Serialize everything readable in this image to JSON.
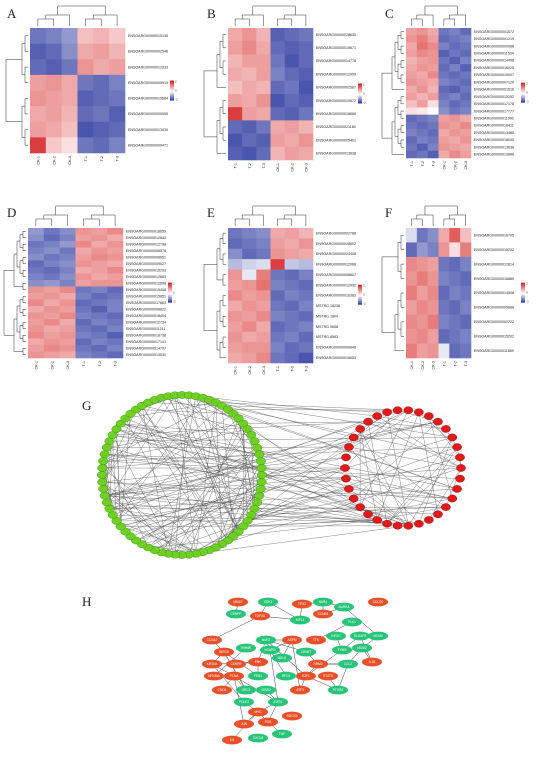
{
  "panels": {
    "A": {
      "label": "A",
      "columns": [
        "CK-1",
        "CK-2",
        "CK-3",
        "T-1",
        "T-2",
        "T-3"
      ],
      "rows": [
        "ENSOARG00000010136",
        "ENSOARG00000002548",
        "ENSOARG00000012933",
        "ENSOARG00000005915",
        "ENSOARG00000019684",
        "ENSOARG00000005055",
        "ENSOARG00000013030",
        "ENSOARG00000009471"
      ],
      "values": [
        [
          -1.2,
          -1.1,
          -0.9,
          0.6,
          0.7,
          0.5
        ],
        [
          -1.4,
          -1.3,
          -1.0,
          0.8,
          0.9,
          0.7
        ],
        [
          -1.3,
          -1.4,
          -1.2,
          1.0,
          0.8,
          0.9
        ],
        [
          0.9,
          1.0,
          0.8,
          -1.2,
          -1.3,
          -1.1
        ],
        [
          1.0,
          0.9,
          0.8,
          -1.4,
          -1.3,
          -1.2
        ],
        [
          0.8,
          0.9,
          0.7,
          -1.3,
          -1.2,
          -1.4
        ],
        [
          0.9,
          0.8,
          0.6,
          -1.5,
          -1.4,
          -1.3
        ],
        [
          1.8,
          0.5,
          0.3,
          -1.2,
          -1.3,
          -1.1
        ]
      ]
    },
    "B": {
      "label": "B",
      "columns": [
        "T-1",
        "T-2",
        "T-3",
        "CK-1",
        "CK-2",
        "CK-3"
      ],
      "rows": [
        "ENSOARG00000028630",
        "ENSOARG00000019671",
        "ENSOARG00000014778",
        "ENSOARG00000012999",
        "ENSOARG00000002587",
        "ENSOARG00000010672",
        "ENSOARG00000018689",
        "ENSOARG00000021180",
        "ENSOARG00000005401",
        "ENSOARG00000013638"
      ],
      "values": [
        [
          0.8,
          1.0,
          0.7,
          -1.4,
          -1.3,
          -1.2
        ],
        [
          0.9,
          1.1,
          0.8,
          -1.3,
          -1.4,
          -1.3
        ],
        [
          0.7,
          0.9,
          0.9,
          -1.2,
          -1.5,
          -1.3
        ],
        [
          0.8,
          0.7,
          0.9,
          -1.1,
          -1.3,
          -1.4
        ],
        [
          0.6,
          0.8,
          0.7,
          -1.3,
          -1.2,
          -1.5
        ],
        [
          0.9,
          0.8,
          1.0,
          -1.5,
          -1.3,
          -1.4
        ],
        [
          1.8,
          0.9,
          0.8,
          -1.3,
          -1.4,
          -1.2
        ],
        [
          -1.3,
          -1.4,
          -1.2,
          0.8,
          0.9,
          0.7
        ],
        [
          -1.5,
          -1.3,
          -1.4,
          0.9,
          0.8,
          1.0
        ],
        [
          -1.4,
          -1.5,
          -1.3,
          0.7,
          0.9,
          0.8
        ]
      ]
    },
    "C": {
      "label": "C",
      "columns": [
        "T-1",
        "T-2",
        "T-3",
        "CK-1",
        "CK-2",
        "CK-3"
      ],
      "rows": [
        "ENSOARG00000001572",
        "ENSOARG00000001219",
        "ENSOARG00000000988",
        "ENSOARG00000011534",
        "ENSOARG00000014498",
        "ENSOARG00000016025",
        "ENSOARG00000019007",
        "ENSOARG00000007120",
        "ENSOARG00000001616",
        "ENSOARG00000015252",
        "ENSOARG00000017178",
        "ENSOARG00000017777",
        "ENSOARG00000011990",
        "ENSOARG00000016411",
        "ENSOARG00000013485",
        "ENSOARG00000018040",
        "ENSOARG00000013636",
        "ENSOARG00000013888"
      ],
      "values": [
        [
          0.9,
          1.0,
          0.8,
          -1.2,
          -1.1,
          -1.3
        ],
        [
          1.0,
          1.2,
          0.9,
          -1.3,
          -1.2,
          -1.1
        ],
        [
          0.8,
          1.3,
          1.1,
          -1.1,
          -1.3,
          -1.2
        ],
        [
          0.9,
          1.1,
          1.0,
          -1.4,
          -1.2,
          -1.3
        ],
        [
          0.7,
          0.9,
          1.0,
          -1.2,
          -1.4,
          -1.1
        ],
        [
          0.8,
          1.0,
          0.9,
          -1.3,
          -1.1,
          -1.4
        ],
        [
          0.9,
          0.8,
          1.1,
          -1.2,
          -1.3,
          -1.2
        ],
        [
          1.0,
          0.9,
          0.8,
          -1.1,
          -1.2,
          -1.3
        ],
        [
          0.8,
          1.0,
          0.7,
          -1.3,
          -1.4,
          -1.2
        ],
        [
          0.9,
          0.7,
          0.9,
          -1.2,
          -1.1,
          -1.3
        ],
        [
          0.6,
          0.9,
          0.3,
          -1.1,
          -1.3,
          -1.2
        ],
        [
          0.3,
          0.2,
          0.0,
          -1.0,
          -1.2,
          -1.1
        ],
        [
          -1.3,
          -1.2,
          -1.1,
          0.9,
          1.0,
          0.8
        ],
        [
          -1.2,
          -1.3,
          -1.2,
          1.0,
          0.9,
          1.1
        ],
        [
          -1.1,
          -1.2,
          -1.3,
          0.8,
          1.0,
          0.9
        ],
        [
          -1.3,
          -1.1,
          -1.2,
          0.9,
          0.8,
          1.0
        ],
        [
          -1.2,
          -1.4,
          -1.1,
          1.0,
          0.9,
          0.8
        ],
        [
          -1.3,
          -1.2,
          -1.4,
          0.8,
          1.1,
          0.9
        ]
      ]
    },
    "D": {
      "label": "D",
      "columns": [
        "CK-1",
        "CK-2",
        "CK-3",
        "T-1",
        "T-2",
        "T-3"
      ],
      "rows": [
        "ENSOARG00000018659",
        "ENSOARG00000012843",
        "ENSOARG00000012798",
        "ENSOARG00000006578",
        "ENSOARG00000006651",
        "ENSOARG00000009027",
        "ENSOARG00000015293",
        "ENSOARG00000012883",
        "ENSOARG00000012698",
        "ENSOARG00000015408",
        "ENSOARG00000015851",
        "ENSOARG00000017663",
        "ENSOARG00000008622",
        "ENSOARG00000018404",
        "ENSOARG00000012734",
        "ENSOARG00000011211",
        "ENSOARG00000018738",
        "ENSOARG00000017141",
        "ENSOARG00000014797",
        "ENSOARG00000013030"
      ],
      "values": [
        [
          -0.9,
          -1.2,
          -1.0,
          1.0,
          0.9,
          1.1
        ],
        [
          -1.0,
          -1.3,
          -1.1,
          0.9,
          1.0,
          0.8
        ],
        [
          -1.2,
          -1.1,
          -0.9,
          1.1,
          0.8,
          1.0
        ],
        [
          -1.1,
          -1.0,
          -1.2,
          0.8,
          1.0,
          0.9
        ],
        [
          -1.0,
          -1.2,
          -1.1,
          0.9,
          1.1,
          1.0
        ],
        [
          -1.3,
          -1.1,
          -1.0,
          1.0,
          0.9,
          0.8
        ],
        [
          -1.2,
          -1.3,
          -1.1,
          0.8,
          0.9,
          1.1
        ],
        [
          -1.1,
          -1.2,
          -1.0,
          1.0,
          0.8,
          0.9
        ],
        [
          -1.0,
          -0.9,
          -1.1,
          0.9,
          1.0,
          1.0
        ],
        [
          1.0,
          0.9,
          1.1,
          -1.2,
          -1.1,
          -1.3
        ],
        [
          0.9,
          1.0,
          0.8,
          -1.1,
          -1.3,
          -1.2
        ],
        [
          1.1,
          0.8,
          1.0,
          -1.3,
          -1.2,
          -1.1
        ],
        [
          0.8,
          1.0,
          0.9,
          -1.2,
          -1.4,
          -1.1
        ],
        [
          1.0,
          0.9,
          1.1,
          -1.1,
          -1.2,
          -1.3
        ],
        [
          0.9,
          1.1,
          0.8,
          -1.3,
          -1.1,
          -1.2
        ],
        [
          1.0,
          0.8,
          0.9,
          -1.2,
          -1.3,
          -1.1
        ],
        [
          1.1,
          0.9,
          1.0,
          -1.1,
          -1.2,
          -1.4
        ],
        [
          0.8,
          1.0,
          0.9,
          -1.3,
          -1.1,
          -1.2
        ],
        [
          0.9,
          1.1,
          1.0,
          -1.2,
          -1.3,
          -1.1
        ],
        [
          1.0,
          0.9,
          0.8,
          -1.1,
          -1.2,
          -1.3
        ]
      ]
    },
    "E": {
      "label": "E",
      "columns": [
        "CK-1",
        "CK-2",
        "CK-3",
        "T-1",
        "T-2",
        "T-3"
      ],
      "rows": [
        "ENSOARG00000002788",
        "ENSOARG00000028602",
        "ENSOARG00000023408",
        "ENSOARG00000012068",
        "ENSOARG00000006607",
        "ENSOARG00000012992",
        "ENSOARG00000016383",
        "MSTRG.18236",
        "MSTRG.1804",
        "MSTRG.9656",
        "MSTRG.8563",
        "ENSOARG00000009648",
        "ENSOARG00000018653"
      ],
      "values": [
        [
          -1.2,
          -1.1,
          -1.0,
          0.8,
          0.9,
          0.7
        ],
        [
          -1.3,
          -1.2,
          -1.1,
          0.9,
          0.8,
          1.0
        ],
        [
          -1.0,
          -1.3,
          -1.2,
          1.0,
          0.9,
          0.8
        ],
        [
          -0.6,
          -0.4,
          -0.3,
          1.8,
          -0.5,
          -0.6
        ],
        [
          1.0,
          -0.2,
          1.2,
          -1.2,
          -1.3,
          -1.1
        ],
        [
          0.9,
          1.0,
          1.3,
          -1.1,
          -1.2,
          -1.3
        ],
        [
          1.1,
          0.9,
          1.0,
          -1.3,
          -1.1,
          -1.2
        ],
        [
          0.8,
          1.0,
          0.9,
          -1.2,
          -1.3,
          -1.1
        ],
        [
          1.0,
          0.9,
          1.1,
          -1.1,
          -1.2,
          -1.3
        ],
        [
          0.9,
          1.1,
          0.8,
          -1.3,
          -1.2,
          -1.1
        ],
        [
          1.0,
          0.8,
          0.9,
          -1.2,
          -1.1,
          -1.3
        ],
        [
          0.9,
          1.0,
          1.0,
          -1.1,
          -1.3,
          -1.2
        ],
        [
          0.8,
          0.9,
          1.1,
          -1.2,
          -1.3,
          -1.5
        ]
      ]
    },
    "F": {
      "label": "F",
      "columns": [
        "CK-1",
        "CK-2",
        "CK-3",
        "T-1",
        "T-2",
        "T-3"
      ],
      "rows": [
        "ENSOARG00000016705",
        "ENSOARG00000015202",
        "ENSOARG00000012814",
        "ENSOARG00000016880",
        "ENSOARG00000014508",
        "ENSOARG00000005686",
        "ENSOARG00000000722",
        "ENSOARG00000015202",
        "ENSOARG00000011889"
      ],
      "values": [
        [
          -0.3,
          -1.2,
          -1.0,
          0.8,
          1.5,
          0.6
        ],
        [
          -1.3,
          -0.9,
          -1.1,
          1.0,
          0.3,
          1.2
        ],
        [
          1.1,
          1.0,
          0.9,
          -1.2,
          -1.3,
          -1.1
        ],
        [
          1.0,
          1.2,
          1.0,
          -1.1,
          -1.2,
          -1.3
        ],
        [
          1.2,
          0.9,
          1.1,
          -1.3,
          -1.1,
          -1.2
        ],
        [
          0.9,
          1.1,
          1.0,
          -1.2,
          -1.3,
          -1.1
        ],
        [
          1.1,
          1.0,
          1.2,
          -1.1,
          -1.2,
          -1.3
        ],
        [
          1.0,
          1.1,
          0.9,
          -1.3,
          -1.2,
          -1.1
        ],
        [
          1.2,
          0.9,
          1.0,
          -0.2,
          -1.3,
          -1.2
        ]
      ]
    }
  },
  "legend": {
    "max_label": "2",
    "mid_label": "0",
    "min_label": "-2"
  },
  "network_g": {
    "label": "G",
    "green_count": 72,
    "red_count": 34
  },
  "network_h": {
    "label": "H",
    "nodes": [
      {
        "name": "MKI67",
        "color": "red"
      },
      {
        "name": "CDK1",
        "color": "green"
      },
      {
        "name": "CENPF",
        "color": "green"
      },
      {
        "name": "TOP2A",
        "color": "red"
      },
      {
        "name": "TPX2",
        "color": "red"
      },
      {
        "name": "BUB1",
        "color": "green"
      },
      {
        "name": "CCNB1",
        "color": "red"
      },
      {
        "name": "KIF11",
        "color": "green"
      },
      {
        "name": "AURKA",
        "color": "green"
      },
      {
        "name": "PLK1",
        "color": "green"
      },
      {
        "name": "CDC20",
        "color": "red"
      },
      {
        "name": "NUF2",
        "color": "green"
      },
      {
        "name": "ASPM",
        "color": "red"
      },
      {
        "name": "TTK",
        "color": "red"
      },
      {
        "name": "KIF2C",
        "color": "green"
      },
      {
        "name": "DLGAP5",
        "color": "green"
      },
      {
        "name": "CCNA2",
        "color": "red"
      },
      {
        "name": "BIRC5",
        "color": "red"
      },
      {
        "name": "HMMR",
        "color": "green"
      },
      {
        "name": "NCAPG",
        "color": "green"
      },
      {
        "name": "KIF20A",
        "color": "red"
      },
      {
        "name": "CENPE",
        "color": "red"
      },
      {
        "name": "PBK",
        "color": "red"
      },
      {
        "name": "MELK",
        "color": "green"
      },
      {
        "name": "ZWINT",
        "color": "green"
      },
      {
        "name": "RRM2",
        "color": "red"
      },
      {
        "name": "TYMS",
        "color": "green"
      },
      {
        "name": "MCM2",
        "color": "green"
      },
      {
        "name": "MCM4",
        "color": "green"
      },
      {
        "name": "PCNA",
        "color": "red"
      },
      {
        "name": "FEN1",
        "color": "green"
      },
      {
        "name": "RFC4",
        "color": "green"
      },
      {
        "name": "E2F1",
        "color": "red"
      },
      {
        "name": "CDC6",
        "color": "red"
      },
      {
        "name": "ORC1",
        "color": "green"
      },
      {
        "name": "GINS2",
        "color": "green"
      },
      {
        "name": "POLE2",
        "color": "green"
      },
      {
        "name": "MYC",
        "color": "red"
      },
      {
        "name": "FOS",
        "color": "red"
      },
      {
        "name": "JUN",
        "color": "red"
      },
      {
        "name": "EGR1",
        "color": "green"
      },
      {
        "name": "ATF3",
        "color": "red"
      },
      {
        "name": "IL6",
        "color": "red"
      },
      {
        "name": "CXCL8",
        "color": "green"
      },
      {
        "name": "TNF",
        "color": "green"
      },
      {
        "name": "SOCS3",
        "color": "red"
      },
      {
        "name": "STAT3",
        "color": "red"
      },
      {
        "name": "CCL2",
        "color": "green"
      },
      {
        "name": "IL1B",
        "color": "red"
      },
      {
        "name": "PTGS2",
        "color": "green"
      },
      {
        "name": "NFKBIA",
        "color": "red"
      }
    ]
  }
}
